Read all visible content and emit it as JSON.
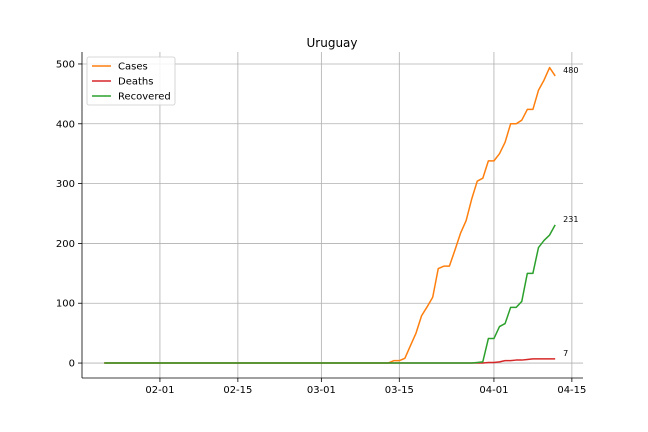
{
  "chart_data": {
    "type": "line",
    "title": "Uruguay",
    "xlabel": "",
    "ylabel": "",
    "x_start": "2020-01-22",
    "x_end": "2020-04-13",
    "xlim": [
      "2020-01-18",
      "2020-04-17"
    ],
    "ylim": [
      -25,
      520
    ],
    "x_ticks": [
      "2020-02-01",
      "2020-02-15",
      "2020-03-01",
      "2020-03-15",
      "2020-04-01",
      "2020-04-15"
    ],
    "x_tick_labels": [
      "02-01",
      "02-15",
      "03-01",
      "03-15",
      "04-01",
      "04-15"
    ],
    "y_ticks": [
      0,
      100,
      200,
      300,
      400,
      500
    ],
    "y_tick_labels": [
      "0",
      "100",
      "200",
      "300",
      "400",
      "500"
    ],
    "grid": true,
    "legend_position": "upper-left",
    "series": [
      {
        "name": "Cases",
        "color": "#ff7f0e",
        "values": [
          0,
          0,
          0,
          0,
          0,
          0,
          0,
          0,
          0,
          0,
          0,
          0,
          0,
          0,
          0,
          0,
          0,
          0,
          0,
          0,
          0,
          0,
          0,
          0,
          0,
          0,
          0,
          0,
          0,
          0,
          0,
          0,
          0,
          0,
          0,
          0,
          0,
          0,
          0,
          0,
          0,
          0,
          0,
          0,
          0,
          0,
          0,
          0,
          0,
          0,
          0,
          0,
          4,
          4,
          8,
          29,
          50,
          79,
          94,
          110,
          158,
          162,
          162,
          189,
          217,
          238,
          274,
          304,
          309,
          338,
          338,
          350,
          369,
          400,
          400,
          406,
          424,
          424,
          456,
          473,
          494,
          480
        ],
        "end_label": "480"
      },
      {
        "name": "Deaths",
        "color": "#d62728",
        "values": [
          0,
          0,
          0,
          0,
          0,
          0,
          0,
          0,
          0,
          0,
          0,
          0,
          0,
          0,
          0,
          0,
          0,
          0,
          0,
          0,
          0,
          0,
          0,
          0,
          0,
          0,
          0,
          0,
          0,
          0,
          0,
          0,
          0,
          0,
          0,
          0,
          0,
          0,
          0,
          0,
          0,
          0,
          0,
          0,
          0,
          0,
          0,
          0,
          0,
          0,
          0,
          0,
          0,
          0,
          0,
          0,
          0,
          0,
          0,
          0,
          0,
          0,
          0,
          0,
          0,
          0,
          0,
          0,
          0,
          1,
          1,
          2,
          4,
          4,
          5,
          5,
          6,
          7,
          7,
          7,
          7,
          7
        ],
        "end_label": "7"
      },
      {
        "name": "Recovered",
        "color": "#2ca02c",
        "values": [
          0,
          0,
          0,
          0,
          0,
          0,
          0,
          0,
          0,
          0,
          0,
          0,
          0,
          0,
          0,
          0,
          0,
          0,
          0,
          0,
          0,
          0,
          0,
          0,
          0,
          0,
          0,
          0,
          0,
          0,
          0,
          0,
          0,
          0,
          0,
          0,
          0,
          0,
          0,
          0,
          0,
          0,
          0,
          0,
          0,
          0,
          0,
          0,
          0,
          0,
          0,
          0,
          0,
          0,
          0,
          0,
          0,
          0,
          0,
          0,
          0,
          0,
          0,
          0,
          0,
          0,
          0,
          1,
          2,
          41,
          41,
          61,
          66,
          93,
          93,
          103,
          150,
          150,
          193,
          205,
          214,
          231
        ],
        "end_label": "231"
      }
    ]
  }
}
